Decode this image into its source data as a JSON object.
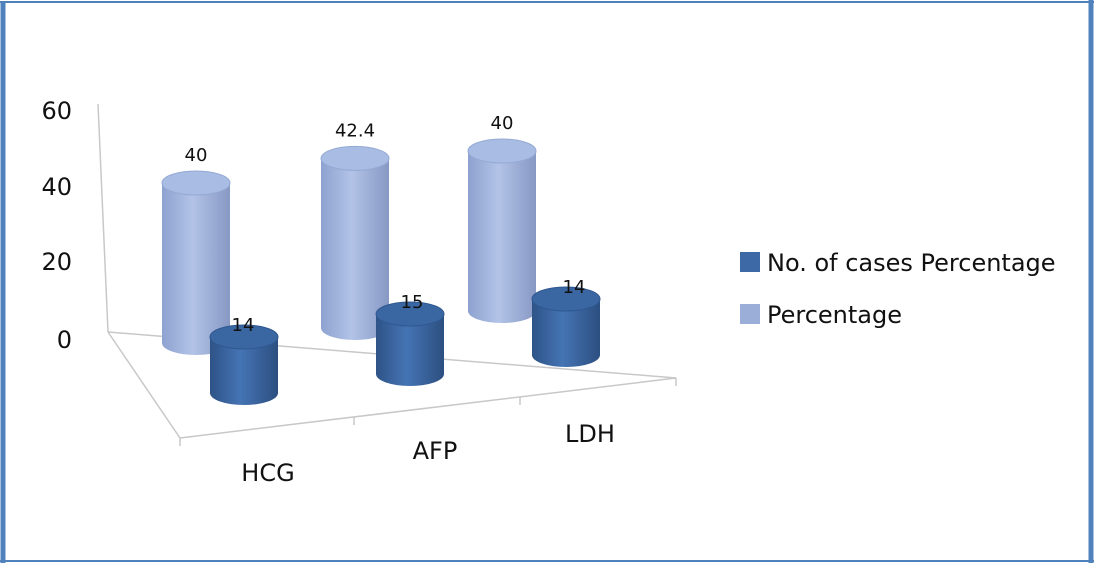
{
  "chart_data": {
    "type": "bar",
    "style": "3d-cylinder",
    "categories": [
      "HCG",
      "AFP",
      "LDH"
    ],
    "series": [
      {
        "name": "No. of cases Percentage",
        "values": [
          14,
          15,
          14
        ],
        "color": "#3d6aa6"
      },
      {
        "name": "Percentage",
        "values": [
          40,
          42.4,
          40
        ],
        "color": "#9aaed8"
      }
    ],
    "y_ticks": [
      0,
      20,
      40,
      60
    ],
    "ylim": [
      0,
      60
    ],
    "legend_position": "right",
    "frame_color": "#4f81bd"
  }
}
